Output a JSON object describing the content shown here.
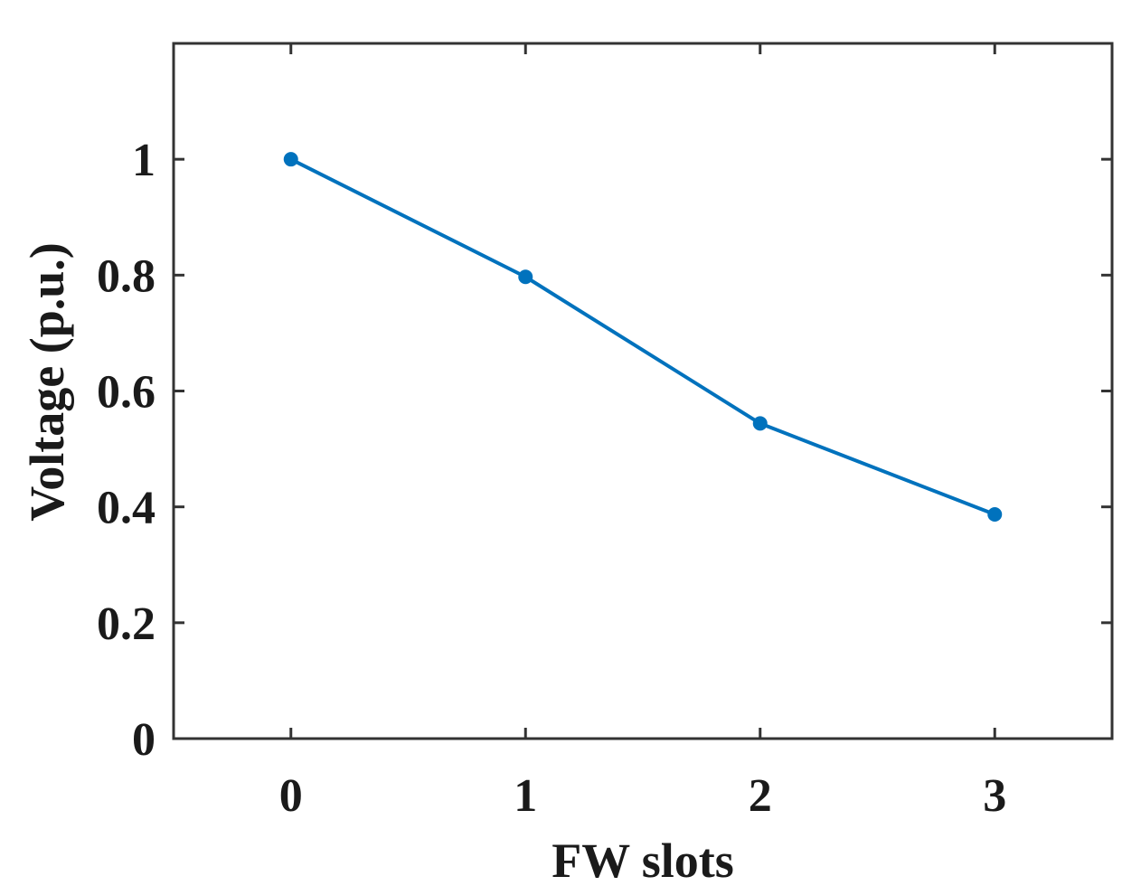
{
  "chart_data": {
    "type": "line",
    "x": [
      0,
      1,
      2,
      3
    ],
    "series": [
      {
        "values": [
          1.0,
          0.797,
          0.544,
          0.387
        ],
        "color": "#0072bd",
        "marker": "circle"
      }
    ],
    "xlabel": "FW slots",
    "ylabel": "Voltage (p.u.)",
    "xlim": [
      -0.5,
      3.5
    ],
    "ylim": [
      0,
      1.2
    ],
    "xticks": [
      0,
      1,
      2,
      3
    ],
    "xtick_labels": [
      "0",
      "1",
      "2",
      "3"
    ],
    "yticks": [
      0,
      0.2,
      0.4,
      0.6,
      0.8,
      1
    ],
    "ytick_labels": [
      "0",
      "0.2",
      "0.4",
      "0.6",
      "0.8",
      "1"
    ],
    "grid": false,
    "box": true,
    "axis_color": "#333333"
  }
}
